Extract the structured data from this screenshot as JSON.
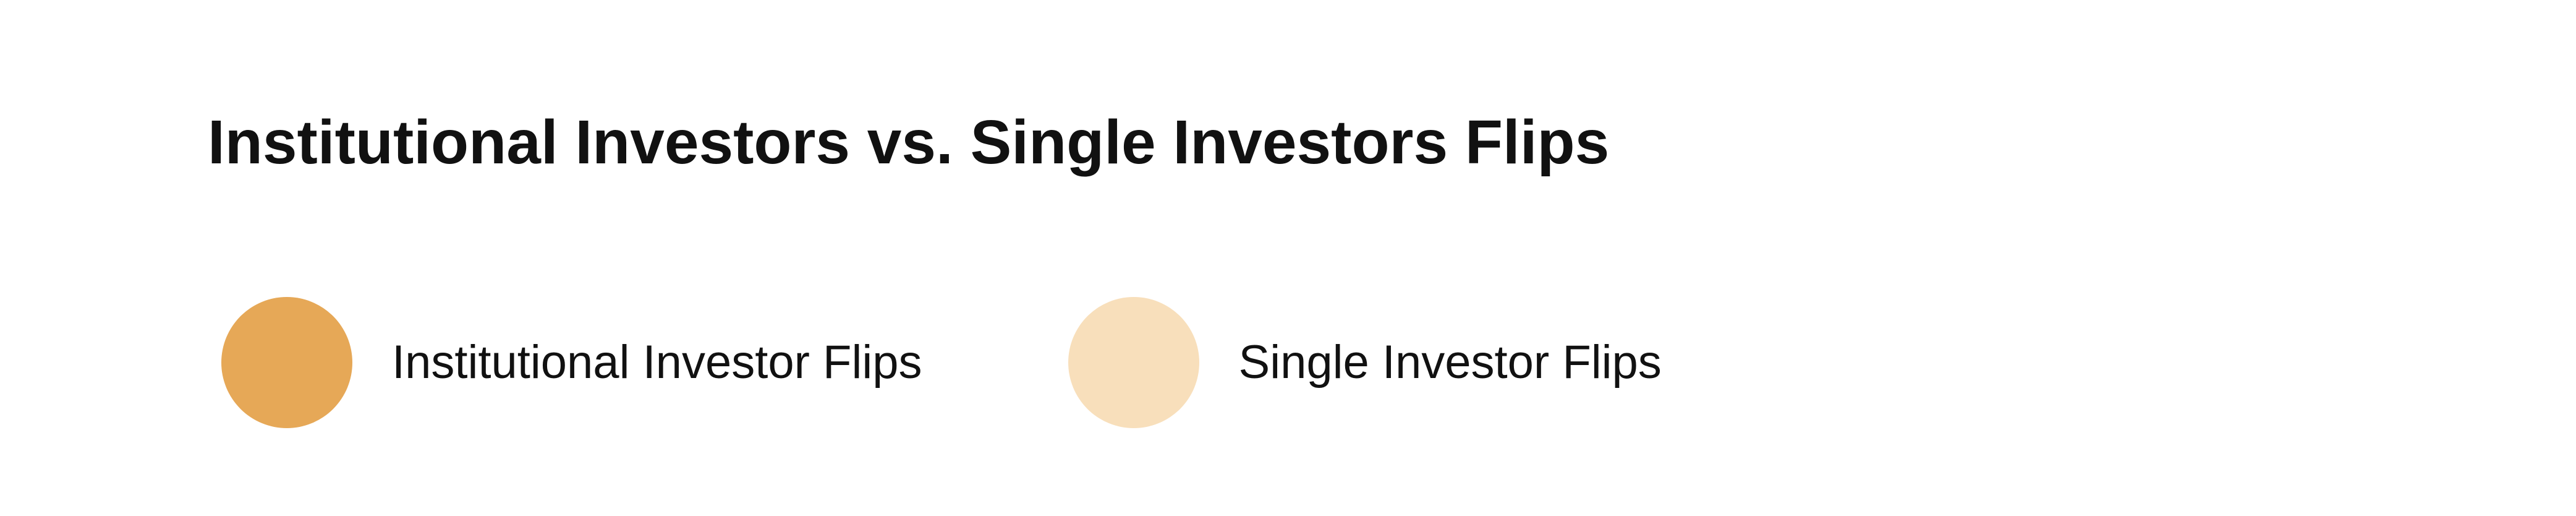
{
  "chart_data": {
    "type": "bar",
    "title": "Institutional Investors vs. Single Investors Flips",
    "legend_position": "top-left",
    "series": [
      {
        "name": "Institutional Investor Flips",
        "color": "#E6A857"
      },
      {
        "name": "Single Investor Flips",
        "color": "#F8DFBB"
      }
    ]
  }
}
